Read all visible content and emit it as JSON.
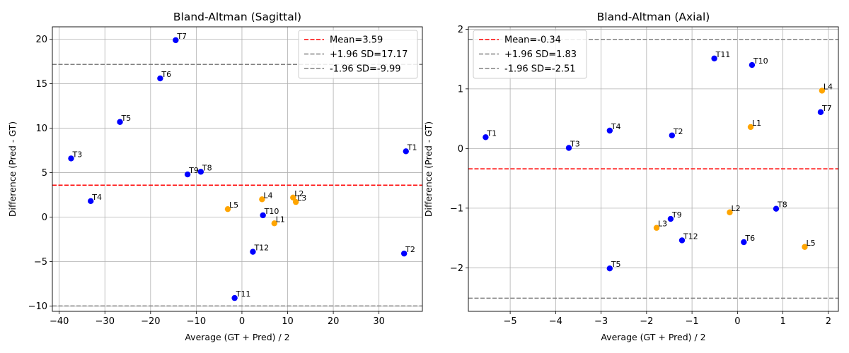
{
  "chart_data": [
    {
      "type": "scatter",
      "title": "Bland-Altman (Sagittal)",
      "xlabel": "Average (GT + Pred) / 2",
      "ylabel": "Difference (Pred - GT)",
      "xlim": [
        -41.5,
        39.5
      ],
      "ylim": [
        -10.6,
        21.4
      ],
      "xticks": [
        -40,
        -30,
        -20,
        -10,
        0,
        10,
        20,
        30
      ],
      "yticks": [
        -10,
        -5,
        0,
        5,
        10,
        15,
        20
      ],
      "grid": true,
      "legend_position": "upper right",
      "reference_lines": [
        {
          "label": "Mean=3.59",
          "y": 3.59,
          "color": "#ff0000",
          "style": "dashed"
        },
        {
          "label": "+1.96 SD=17.17",
          "y": 17.17,
          "color": "#808080",
          "style": "dashed"
        },
        {
          "label": "-1.96 SD=-9.99",
          "y": -9.99,
          "color": "#808080",
          "style": "dashed"
        }
      ],
      "points": [
        {
          "label": "T7",
          "x": -14.5,
          "y": 19.9,
          "color": "#0000ff"
        },
        {
          "label": "T6",
          "x": -17.9,
          "y": 15.6,
          "color": "#0000ff"
        },
        {
          "label": "T5",
          "x": -26.7,
          "y": 10.7,
          "color": "#0000ff"
        },
        {
          "label": "T3",
          "x": -37.4,
          "y": 6.6,
          "color": "#0000ff"
        },
        {
          "label": "T9",
          "x": -11.9,
          "y": 4.8,
          "color": "#0000ff"
        },
        {
          "label": "T8",
          "x": -9.0,
          "y": 5.1,
          "color": "#0000ff"
        },
        {
          "label": "T4",
          "x": -33.1,
          "y": 1.8,
          "color": "#0000ff"
        },
        {
          "label": "T1",
          "x": 35.9,
          "y": 7.4,
          "color": "#0000ff"
        },
        {
          "label": "L4",
          "x": 4.4,
          "y": 2.0,
          "color": "#ffa500"
        },
        {
          "label": "L2",
          "x": 11.2,
          "y": 2.2,
          "color": "#ffa500"
        },
        {
          "label": "L3",
          "x": 11.8,
          "y": 1.7,
          "color": "#ffa500"
        },
        {
          "label": "L5",
          "x": -3.1,
          "y": 0.9,
          "color": "#ffa500"
        },
        {
          "label": "T10",
          "x": 4.6,
          "y": 0.2,
          "color": "#0000ff"
        },
        {
          "label": "L1",
          "x": 7.1,
          "y": -0.7,
          "color": "#ffa500"
        },
        {
          "label": "T12",
          "x": 2.4,
          "y": -3.9,
          "color": "#0000ff"
        },
        {
          "label": "T2",
          "x": 35.5,
          "y": -4.1,
          "color": "#0000ff"
        },
        {
          "label": "T11",
          "x": -1.6,
          "y": -9.1,
          "color": "#0000ff"
        }
      ]
    },
    {
      "type": "scatter",
      "title": "Bland-Altman (Axial)",
      "xlabel": "Average (GT + Pred) / 2",
      "ylabel": "Difference (Pred - GT)",
      "xlim": [
        -5.92,
        2.22
      ],
      "ylim": [
        -2.73,
        2.04
      ],
      "xticks": [
        -5,
        -4,
        -3,
        -2,
        -1,
        0,
        1,
        2
      ],
      "yticks": [
        -2,
        -1,
        0,
        1,
        2
      ],
      "grid": true,
      "legend_position": "upper left",
      "reference_lines": [
        {
          "label": "Mean=-0.34",
          "y": -0.34,
          "color": "#ff0000",
          "style": "dashed"
        },
        {
          "label": "+1.96 SD=1.83",
          "y": 1.83,
          "color": "#808080",
          "style": "dashed"
        },
        {
          "label": "-1.96 SD=-2.51",
          "y": -2.51,
          "color": "#808080",
          "style": "dashed"
        }
      ],
      "points": [
        {
          "label": "T1",
          "x": -5.54,
          "y": 0.19,
          "color": "#0000ff"
        },
        {
          "label": "T3",
          "x": -3.71,
          "y": 0.01,
          "color": "#0000ff"
        },
        {
          "label": "T4",
          "x": -2.81,
          "y": 0.3,
          "color": "#0000ff"
        },
        {
          "label": "T2",
          "x": -1.44,
          "y": 0.22,
          "color": "#0000ff"
        },
        {
          "label": "T11",
          "x": -0.51,
          "y": 1.51,
          "color": "#0000ff"
        },
        {
          "label": "T10",
          "x": 0.32,
          "y": 1.4,
          "color": "#0000ff"
        },
        {
          "label": "L1",
          "x": 0.29,
          "y": 0.36,
          "color": "#ffa500"
        },
        {
          "label": "L4",
          "x": 1.86,
          "y": 0.97,
          "color": "#ffa500"
        },
        {
          "label": "T7",
          "x": 1.83,
          "y": 0.61,
          "color": "#0000ff"
        },
        {
          "label": "L2",
          "x": -0.17,
          "y": -1.07,
          "color": "#ffa500"
        },
        {
          "label": "T8",
          "x": 0.85,
          "y": -1.01,
          "color": "#0000ff"
        },
        {
          "label": "T9",
          "x": -1.47,
          "y": -1.18,
          "color": "#0000ff"
        },
        {
          "label": "L3",
          "x": -1.78,
          "y": -1.33,
          "color": "#ffa500"
        },
        {
          "label": "T12",
          "x": -1.22,
          "y": -1.54,
          "color": "#0000ff"
        },
        {
          "label": "T6",
          "x": 0.14,
          "y": -1.57,
          "color": "#0000ff"
        },
        {
          "label": "L5",
          "x": 1.48,
          "y": -1.65,
          "color": "#ffa500"
        },
        {
          "label": "T5",
          "x": -2.81,
          "y": -2.01,
          "color": "#0000ff"
        }
      ]
    }
  ]
}
